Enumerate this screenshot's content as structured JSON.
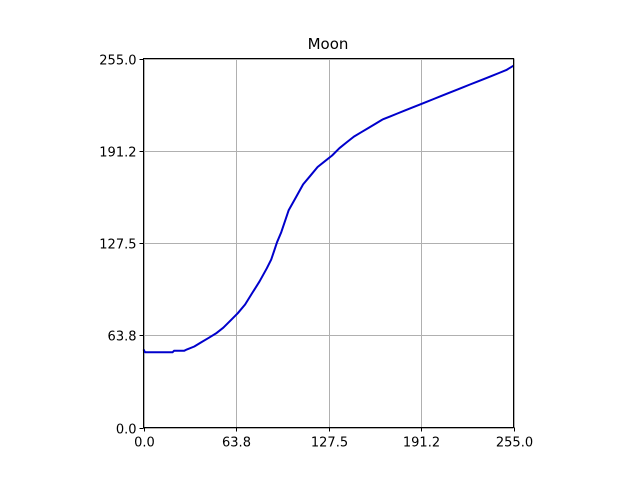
{
  "chart_data": {
    "type": "line",
    "title": "Moon",
    "xlabel": "",
    "ylabel": "",
    "xlim": [
      0.0,
      255.0
    ],
    "ylim": [
      0.0,
      255.0
    ],
    "xticks": [
      0.0,
      63.8,
      127.5,
      191.2,
      255.0
    ],
    "yticks": [
      0.0,
      63.8,
      127.5,
      191.2,
      255.0
    ],
    "xtick_labels": [
      "0.0",
      "63.8",
      "127.5",
      "191.2",
      "255.0"
    ],
    "ytick_labels": [
      "0.0",
      "63.8",
      "127.5",
      "191.2",
      "255.0"
    ],
    "grid": true,
    "legend": "none",
    "series": [
      {
        "color": "#0000cc",
        "x": [
          0,
          1,
          3,
          10,
          20,
          21,
          28,
          30,
          35,
          40,
          45,
          50,
          55,
          60,
          65,
          70,
          75,
          80,
          85,
          88,
          90,
          92,
          95,
          98,
          100,
          105,
          110,
          115,
          120,
          125,
          130,
          135,
          140,
          145,
          150,
          155,
          160,
          165,
          170,
          175,
          180,
          185,
          190,
          195,
          200,
          205,
          210,
          215,
          220,
          225,
          230,
          235,
          240,
          245,
          250,
          255
        ],
        "y": [
          54,
          52,
          52,
          52,
          52,
          53,
          53,
          54,
          56,
          59,
          62,
          65,
          69,
          74,
          79,
          85,
          93,
          101,
          110,
          116,
          122,
          128,
          135,
          144,
          150,
          159,
          168,
          174,
          180,
          184,
          188,
          193,
          197,
          201,
          204,
          207,
          210,
          213,
          215,
          217,
          219,
          221,
          223,
          225,
          227,
          229,
          231,
          233,
          235,
          237,
          239,
          241,
          243,
          245,
          247,
          250
        ]
      }
    ]
  }
}
